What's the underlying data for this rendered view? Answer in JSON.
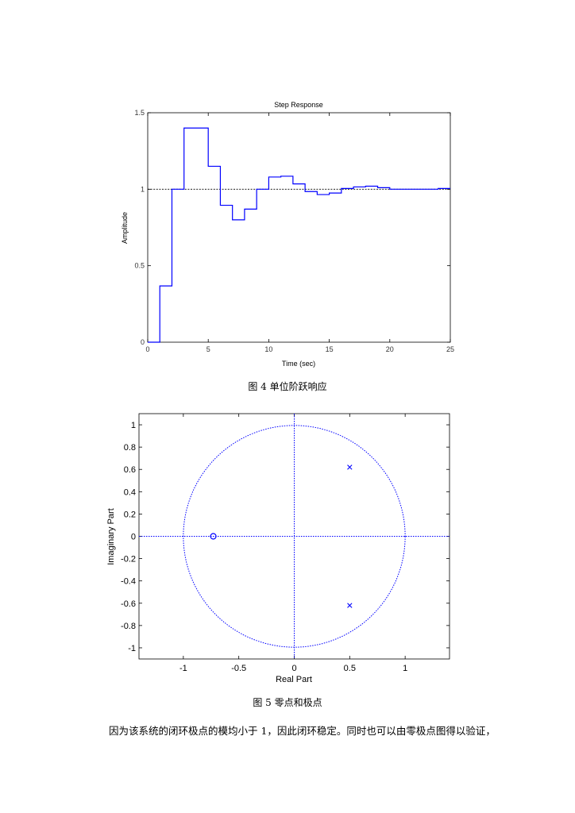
{
  "fig4": {
    "caption": "图 4 单位阶跃响应"
  },
  "fig5": {
    "caption": "图 5 零点和极点"
  },
  "paragraph": "因为该系统的闭环极点的模均小于 1，因此闭环稳定。同时也可以由零极点图得以验证，",
  "colors": {
    "series": "#0000ff",
    "axis": "#000000"
  },
  "chart_data": [
    {
      "type": "line",
      "subtype": "step",
      "title": "Step Response",
      "xlabel": "Time (sec)",
      "ylabel": "Amplitude",
      "xlim": [
        0,
        25
      ],
      "ylim": [
        0,
        1.5
      ],
      "xticks": [
        0,
        5,
        10,
        15,
        20,
        25
      ],
      "yticks": [
        0,
        0.5,
        1,
        1.5
      ],
      "xtick_labels": [
        "0",
        "5",
        "10",
        "15",
        "20",
        "25"
      ],
      "ytick_labels": [
        "0",
        "0.5",
        "1",
        "1.5"
      ],
      "reference_line": 1,
      "series": [
        {
          "x": [
            0,
            1,
            2,
            3,
            4,
            5,
            6,
            7,
            8,
            9,
            10,
            11,
            12,
            13,
            14,
            15,
            16,
            17,
            18,
            19,
            20,
            21,
            22,
            23,
            24,
            25
          ],
          "values": [
            0,
            0.368,
            1,
            1.4,
            1.4,
            1.15,
            0.895,
            0.8,
            0.87,
            1,
            1.08,
            1.085,
            1.035,
            0.985,
            0.965,
            0.975,
            1.005,
            1.015,
            1.02,
            1.01,
            1,
            1,
            1,
            1,
            1.005,
            1.005
          ]
        }
      ]
    },
    {
      "type": "scatter",
      "subtype": "pole-zero map",
      "xlabel": "Real Part",
      "ylabel": "Imaginary Part",
      "xlim": [
        -1.4,
        1.4
      ],
      "ylim": [
        -1.1,
        1.1
      ],
      "xticks": [
        -1,
        -0.5,
        0,
        0.5,
        1
      ],
      "yticks": [
        -1,
        -0.8,
        -0.6,
        -0.4,
        -0.2,
        0,
        0.2,
        0.4,
        0.6,
        0.8,
        1
      ],
      "xtick_labels": [
        "-1",
        "-0.5",
        "0",
        "0.5",
        "1"
      ],
      "ytick_labels": [
        "-1",
        "-0.8",
        "-0.6",
        "-0.4",
        "-0.2",
        "0",
        "0.2",
        "0.4",
        "0.6",
        "0.8",
        "1"
      ],
      "unit_circle": true,
      "zeros": [
        {
          "re": -0.73,
          "im": 0
        }
      ],
      "poles": [
        {
          "re": 0.5,
          "im": 0.62
        },
        {
          "re": 0.5,
          "im": -0.62
        }
      ]
    }
  ]
}
